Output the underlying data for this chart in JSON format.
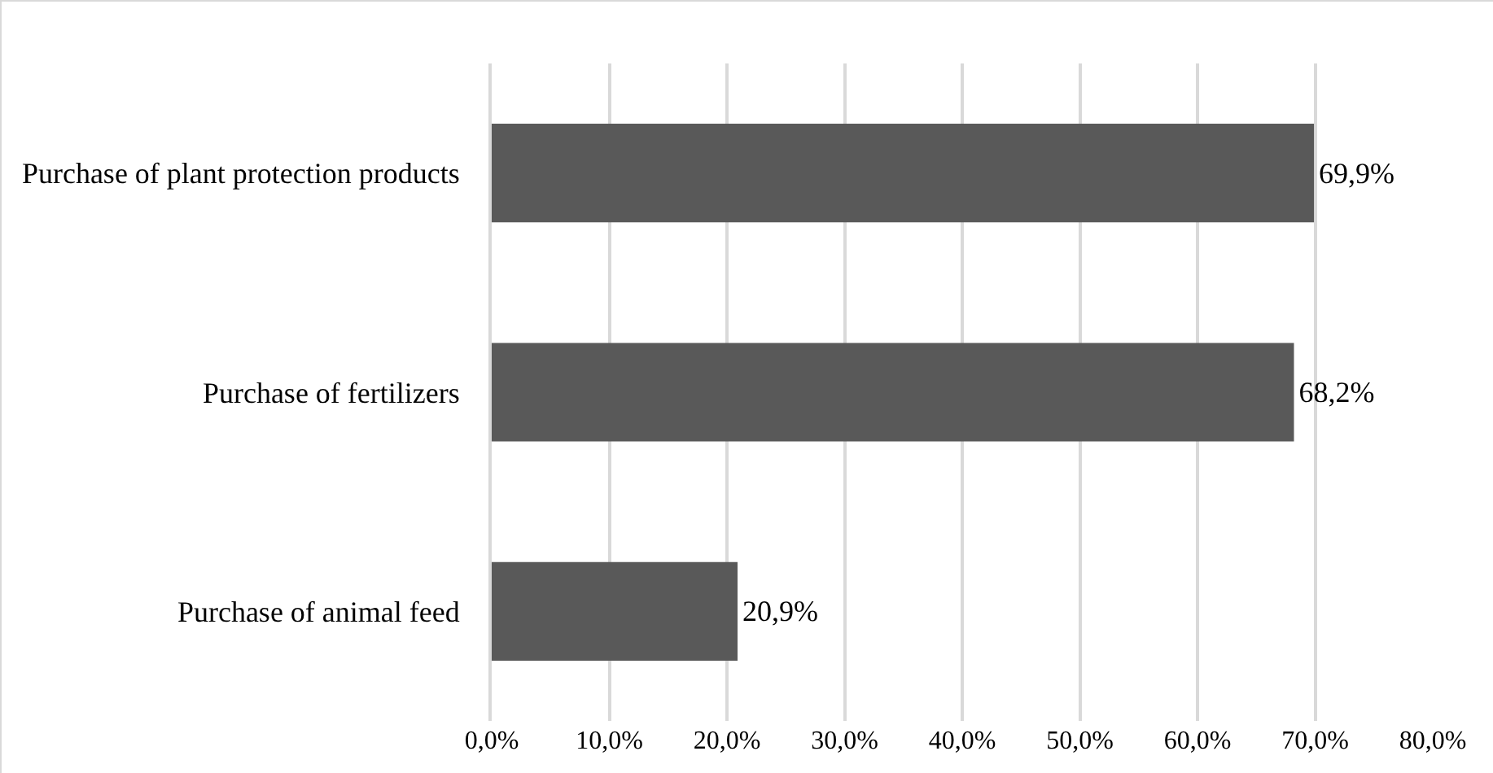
{
  "chart_data": {
    "type": "bar",
    "orientation": "horizontal",
    "categories": [
      "Purchase of plant protection products",
      "Purchase of fertilizers",
      "Purchase of animal feed"
    ],
    "values": [
      69.9,
      68.2,
      20.9
    ],
    "value_labels": [
      "69,9%",
      "68,2%",
      "20,9%"
    ],
    "color": "#595959",
    "xlim": [
      0,
      80
    ],
    "xticks": [
      {
        "value": 0,
        "label": "0,0%"
      },
      {
        "value": 10,
        "label": "10,0%"
      },
      {
        "value": 20,
        "label": "20,0%"
      },
      {
        "value": 30,
        "label": "30,0%"
      },
      {
        "value": 40,
        "label": "40,0%"
      },
      {
        "value": 50,
        "label": "50,0%"
      },
      {
        "value": 60,
        "label": "60,0%"
      },
      {
        "value": 70,
        "label": "70,0%"
      },
      {
        "value": 80,
        "label": "80,0%"
      }
    ],
    "grid": "x"
  }
}
